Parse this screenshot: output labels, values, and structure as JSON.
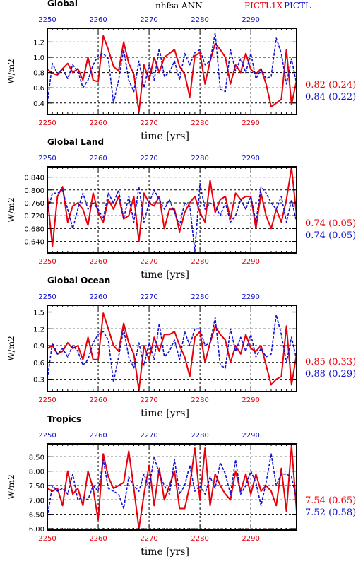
{
  "header": {
    "left_label": "nhfsa ANN",
    "run_a": "PICTL1X",
    "run_b": "PICTL",
    "run_a_color": "#e8000b",
    "run_b_color": "#1010d0"
  },
  "xlabel": "time [yrs]",
  "ylabel": "W/m2",
  "chart_data": [
    {
      "type": "line",
      "title": "Global",
      "xlim": [
        2250,
        2299
      ],
      "ylim": [
        0.25,
        1.38
      ],
      "xticks": [
        "2250",
        "2260",
        "2270",
        "2280",
        "2290"
      ],
      "yticks": [
        "0.4",
        "0.6",
        "0.8",
        "1.0",
        "1.2"
      ],
      "ytick_values": [
        0.4,
        0.6,
        0.8,
        1.0,
        1.2
      ],
      "series": [
        {
          "name": "PICTL1X",
          "color": "#e8000b",
          "stat": "0.82 (0.24)",
          "values": [
            0.84,
            0.79,
            0.77,
            0.85,
            0.92,
            0.8,
            0.85,
            0.7,
            1.0,
            0.7,
            0.68,
            1.28,
            1.1,
            0.88,
            0.82,
            1.2,
            0.92,
            0.78,
            0.28,
            0.9,
            0.7,
            1.0,
            0.8,
            1.0,
            1.05,
            1.1,
            0.88,
            0.78,
            0.48,
            1.02,
            1.06,
            0.65,
            0.95,
            1.18,
            1.1,
            1.0,
            0.65,
            0.9,
            0.8,
            1.05,
            0.84,
            0.78,
            0.85,
            0.65,
            0.35,
            0.4,
            0.45,
            1.1,
            0.38,
            0.7
          ]
        },
        {
          "name": "PICTL",
          "color": "#1010d0",
          "stat": "0.84 (0.22)",
          "values": [
            0.4,
            0.92,
            0.78,
            0.85,
            0.72,
            0.9,
            0.82,
            0.6,
            0.7,
            0.9,
            1.02,
            1.05,
            0.98,
            0.4,
            0.7,
            1.1,
            0.7,
            0.55,
            0.95,
            0.6,
            0.9,
            0.7,
            1.12,
            0.75,
            0.8,
            0.95,
            0.7,
            1.05,
            0.9,
            1.06,
            1.1,
            0.9,
            0.95,
            1.32,
            0.58,
            0.55,
            1.1,
            0.82,
            0.98,
            0.8,
            1.05,
            0.72,
            0.84,
            0.72,
            0.75,
            1.25,
            1.05,
            0.65,
            0.98,
            0.65
          ]
        }
      ]
    },
    {
      "type": "line",
      "title": "Global Land",
      "xlim": [
        2250,
        2299
      ],
      "ylim": [
        0.604,
        0.872
      ],
      "xticks": [
        "2250",
        "2260",
        "2270",
        "2280",
        "2290"
      ],
      "yticks": [
        "0.640",
        "0.680",
        "0.720",
        "0.760",
        "0.800",
        "0.840"
      ],
      "ytick_values": [
        0.64,
        0.68,
        0.72,
        0.76,
        0.8,
        0.84
      ],
      "series": [
        {
          "name": "PICTL1X",
          "color": "#e8000b",
          "stat": "0.74 (0.05)",
          "values": [
            0.78,
            0.625,
            0.78,
            0.81,
            0.7,
            0.75,
            0.76,
            0.74,
            0.69,
            0.79,
            0.73,
            0.7,
            0.77,
            0.74,
            0.78,
            0.71,
            0.72,
            0.78,
            0.64,
            0.79,
            0.76,
            0.75,
            0.78,
            0.68,
            0.74,
            0.74,
            0.67,
            0.73,
            0.76,
            0.78,
            0.73,
            0.7,
            0.83,
            0.73,
            0.77,
            0.78,
            0.71,
            0.79,
            0.77,
            0.78,
            0.78,
            0.68,
            0.79,
            0.72,
            0.68,
            0.74,
            0.7,
            0.77,
            0.87,
            0.72
          ]
        },
        {
          "name": "PICTL",
          "color": "#1010d0",
          "stat": "0.74 (0.05)",
          "values": [
            0.73,
            0.79,
            0.79,
            0.8,
            0.74,
            0.68,
            0.74,
            0.79,
            0.74,
            0.76,
            0.74,
            0.71,
            0.79,
            0.76,
            0.8,
            0.71,
            0.78,
            0.7,
            0.81,
            0.7,
            0.76,
            0.8,
            0.77,
            0.74,
            0.77,
            0.73,
            0.69,
            0.76,
            0.75,
            0.61,
            0.82,
            0.74,
            0.76,
            0.75,
            0.72,
            0.76,
            0.7,
            0.72,
            0.77,
            0.74,
            0.78,
            0.7,
            0.81,
            0.79,
            0.76,
            0.74,
            0.78,
            0.7,
            0.77,
            0.7
          ]
        }
      ]
    },
    {
      "type": "line",
      "title": "Global Ocean",
      "xlim": [
        2250,
        2299
      ],
      "ylim": [
        0.08,
        1.62
      ],
      "xticks": [
        "2250",
        "2260",
        "2270",
        "2280",
        "2290"
      ],
      "yticks": [
        "0.3",
        "0.6",
        "0.9",
        "1.2",
        "1.5"
      ],
      "ytick_values": [
        0.3,
        0.6,
        0.9,
        1.2,
        1.5
      ],
      "series": [
        {
          "name": "PICTL1X",
          "color": "#e8000b",
          "stat": "0.85 (0.33)",
          "values": [
            0.85,
            0.9,
            0.75,
            0.8,
            0.95,
            0.85,
            0.9,
            0.65,
            1.05,
            0.65,
            0.65,
            1.48,
            1.2,
            0.9,
            0.8,
            1.3,
            0.95,
            0.75,
            0.1,
            0.9,
            0.65,
            1.05,
            0.8,
            1.1,
            1.1,
            1.15,
            0.9,
            0.7,
            0.35,
            1.05,
            1.15,
            0.6,
            0.95,
            1.25,
            1.1,
            1.0,
            0.6,
            0.9,
            0.75,
            1.1,
            0.85,
            0.8,
            0.9,
            0.55,
            0.2,
            0.3,
            0.35,
            1.25,
            0.2,
            0.75
          ]
        },
        {
          "name": "PICTL",
          "color": "#1010d0",
          "stat": "0.88 (0.29)",
          "values": [
            0.3,
            0.95,
            0.75,
            0.85,
            0.7,
            0.9,
            0.8,
            0.55,
            0.65,
            0.95,
            1.1,
            1.15,
            1.0,
            0.25,
            0.7,
            1.2,
            0.7,
            0.5,
            0.95,
            0.55,
            0.95,
            0.65,
            1.3,
            0.7,
            0.8,
            1.0,
            0.65,
            1.15,
            0.9,
            1.2,
            1.2,
            0.9,
            0.95,
            1.4,
            0.55,
            0.5,
            1.2,
            0.8,
            1.05,
            0.8,
            1.1,
            0.7,
            0.85,
            0.7,
            0.75,
            1.45,
            1.1,
            0.6,
            1.05,
            0.65
          ]
        }
      ]
    },
    {
      "type": "line",
      "title": "Tropics",
      "xlim": [
        2250,
        2299
      ],
      "ylim": [
        5.95,
        8.95
      ],
      "xticks": [
        "2250",
        "2260",
        "2270",
        "2280",
        "2290"
      ],
      "yticks": [
        "6.00",
        "6.50",
        "7.00",
        "7.50",
        "8.00",
        "8.50"
      ],
      "ytick_values": [
        6.0,
        6.5,
        7.0,
        7.5,
        8.0,
        8.5
      ],
      "series": [
        {
          "name": "PICTL1X",
          "color": "#e8000b",
          "stat": "7.54 (0.65)",
          "values": [
            7.4,
            7.3,
            7.4,
            6.8,
            8.0,
            7.2,
            7.4,
            6.8,
            8.0,
            7.4,
            6.3,
            8.6,
            7.8,
            7.4,
            7.5,
            7.6,
            8.7,
            7.4,
            6.0,
            7.2,
            8.2,
            6.8,
            8.1,
            7.0,
            7.5,
            8.0,
            6.7,
            6.7,
            7.5,
            8.8,
            7.0,
            8.8,
            6.8,
            7.9,
            7.5,
            7.2,
            7.0,
            8.0,
            7.3,
            7.9,
            7.2,
            7.9,
            7.3,
            7.5,
            7.3,
            6.8,
            8.1,
            6.6,
            8.9,
            6.6
          ]
        },
        {
          "name": "PICTL",
          "color": "#1010d0",
          "stat": "7.52 (0.58)",
          "values": [
            6.4,
            7.5,
            7.3,
            7.4,
            7.2,
            7.9,
            7.0,
            7.1,
            7.0,
            7.5,
            7.3,
            8.4,
            7.4,
            7.3,
            7.2,
            6.7,
            7.8,
            7.5,
            7.3,
            7.9,
            7.4,
            8.5,
            7.9,
            7.5,
            7.2,
            8.4,
            7.2,
            7.5,
            8.2,
            7.3,
            7.5,
            7.2,
            7.8,
            7.4,
            8.3,
            7.9,
            7.2,
            8.4,
            7.2,
            7.5,
            8.0,
            7.6,
            6.8,
            7.6,
            8.6,
            7.5,
            7.9,
            7.9,
            7.8,
            7.0
          ]
        }
      ]
    }
  ]
}
